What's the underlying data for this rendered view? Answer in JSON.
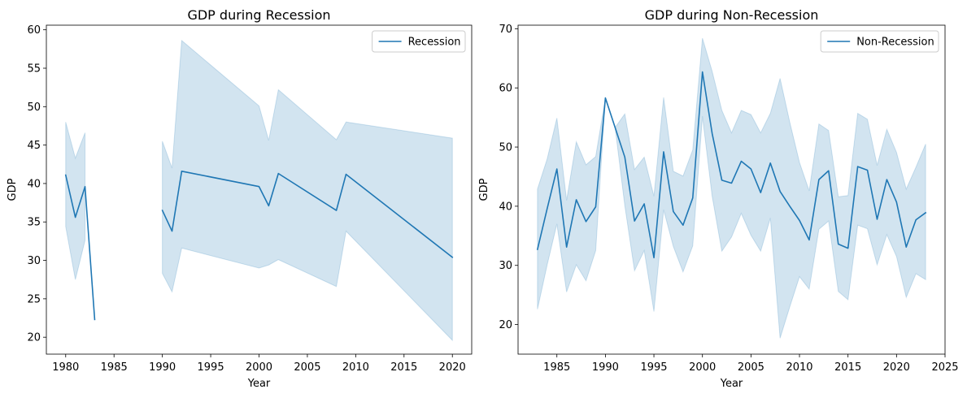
{
  "chart_data": [
    {
      "type": "line",
      "title": "GDP during Recession",
      "xlabel": "Year",
      "ylabel": "GDP",
      "xlim": [
        1978,
        2022
      ],
      "ylim": [
        17.8,
        60.6
      ],
      "xticks": [
        1980,
        1985,
        1990,
        1995,
        2000,
        2005,
        2010,
        2015,
        2020
      ],
      "yticks": [
        20,
        25,
        30,
        35,
        40,
        45,
        50,
        55,
        60
      ],
      "grid": false,
      "legend": "upper right",
      "series": [
        {
          "name": "Recession",
          "color": "#1f77b4",
          "segments": [
            {
              "x": [
                1980,
                1981,
                1982,
                1983
              ],
              "y": [
                41.1,
                35.6,
                39.6,
                22.3
              ],
              "lower": [
                34.4,
                27.5,
                32.6,
                null
              ],
              "upper": [
                48.0,
                43.3,
                46.6,
                null
              ]
            },
            {
              "x": [
                1990,
                1991,
                1992,
                2000,
                2001,
                2002,
                2008,
                2009,
                2020
              ],
              "y": [
                36.5,
                33.8,
                41.6,
                39.6,
                37.1,
                41.3,
                36.5,
                41.2,
                30.4
              ],
              "lower": [
                28.3,
                25.9,
                31.6,
                29.0,
                29.4,
                30.1,
                26.6,
                33.8,
                19.6
              ],
              "upper": [
                45.5,
                42.0,
                58.6,
                50.1,
                45.6,
                52.2,
                45.7,
                48.0,
                45.9
              ]
            }
          ]
        }
      ]
    },
    {
      "type": "line",
      "title": "GDP during Non-Recession",
      "xlabel": "Year",
      "ylabel": "GDP",
      "xlim": [
        1981,
        2025
      ],
      "ylim": [
        15.0,
        70.6
      ],
      "xticks": [
        1985,
        1990,
        1995,
        2000,
        2005,
        2010,
        2015,
        2020,
        2025
      ],
      "yticks": [
        20,
        30,
        40,
        50,
        60,
        70
      ],
      "grid": false,
      "legend": "upper right",
      "series": [
        {
          "name": "Non-Recession",
          "color": "#1f77b4",
          "segments": [
            {
              "x": [
                1983,
                1984,
                1985,
                1986,
                1987,
                1988,
                1989,
                1990,
                1991,
                1992,
                1993,
                1994,
                1995,
                1996,
                1997,
                1998,
                1999,
                2000,
                2001,
                2002,
                2003,
                2004,
                2005,
                2006,
                2007,
                2008,
                2009,
                2010,
                2011,
                2012,
                2013,
                2014,
                2015,
                2016,
                2017,
                2018,
                2019,
                2020,
                2021,
                2022,
                2023
              ],
              "y": [
                32.7,
                39.6,
                46.3,
                33.1,
                41.1,
                37.4,
                39.9,
                58.3,
                53.3,
                48.3,
                37.5,
                40.4,
                31.3,
                49.2,
                39.1,
                36.8,
                41.4,
                62.7,
                52.3,
                44.4,
                43.9,
                47.6,
                46.3,
                42.3,
                47.3,
                42.5,
                40.0,
                37.6,
                34.3,
                44.5,
                46.0,
                33.6,
                32.9,
                46.7,
                46.1,
                37.8,
                44.5,
                40.7,
                33.1,
                37.7,
                38.9
              ],
              "lower": [
                22.6,
                30.1,
                37.0,
                25.5,
                30.1,
                27.4,
                32.5,
                58.3,
                53.3,
                40.1,
                29.1,
                32.5,
                22.2,
                39.4,
                33.2,
                28.9,
                33.3,
                55.2,
                41.7,
                32.4,
                34.8,
                38.8,
                35.1,
                32.4,
                38.0,
                17.7,
                23.0,
                28.1,
                26.0,
                36.1,
                37.5,
                25.6,
                24.2,
                36.8,
                36.2,
                30.1,
                35.2,
                31.5,
                24.6,
                28.6,
                27.6
              ],
              "upper": [
                42.9,
                48.0,
                54.9,
                41.0,
                50.9,
                47.0,
                48.4,
                58.3,
                53.3,
                55.6,
                46.2,
                48.3,
                41.7,
                58.4,
                45.9,
                45.1,
                49.5,
                68.4,
                62.8,
                56.2,
                52.4,
                56.2,
                55.5,
                52.4,
                55.7,
                61.6,
                54.2,
                47.4,
                42.6,
                53.9,
                52.8,
                41.6,
                41.8,
                55.7,
                54.7,
                46.9,
                53.0,
                49.1,
                42.9,
                46.6,
                50.5
              ]
            }
          ]
        }
      ]
    }
  ]
}
